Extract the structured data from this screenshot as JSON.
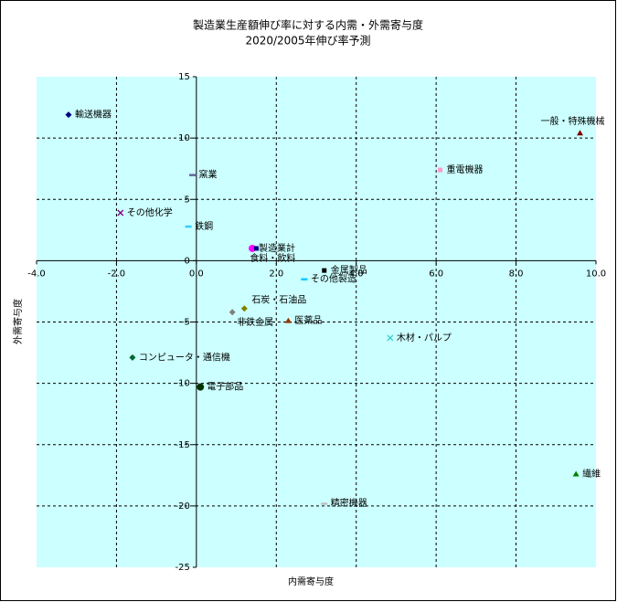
{
  "chart_data": {
    "type": "scatter",
    "title": "製造業生産額伸び率に対する内需・外需寄与度",
    "subtitle": "2020/2005年伸び率予測",
    "x_label": "内需寄与度",
    "y_label": "外需寄与度",
    "xlim": [
      -4,
      10
    ],
    "ylim": [
      -25,
      15
    ],
    "xticks": [
      {
        "value": -4,
        "label": "-4.0"
      },
      {
        "value": -2,
        "label": "-2.0"
      },
      {
        "value": 0,
        "label": "0.0"
      },
      {
        "value": 2,
        "label": "2.0"
      },
      {
        "value": 4,
        "label": "4.0"
      },
      {
        "value": 6,
        "label": "6.0"
      },
      {
        "value": 8,
        "label": "8.0"
      },
      {
        "value": 10,
        "label": "10.0"
      }
    ],
    "yticks": [
      15,
      10,
      5,
      0,
      -5,
      -10,
      -15,
      -20,
      -25
    ],
    "grid": true,
    "background": "#ccffff",
    "points": [
      {
        "name": "輸送機器",
        "color": "#000080",
        "marker": "diamond",
        "x": -3.2,
        "y": 11.9
      },
      {
        "name": "一般・特殊機械",
        "color": "#800000",
        "marker": "triangle",
        "x": 9.6,
        "y": 10.4
      },
      {
        "name": "重電機器",
        "color": "#ff99cc",
        "marker": "square",
        "x": 6.1,
        "y": 7.4
      },
      {
        "name": "窯業",
        "color": "#666699",
        "marker": "dash",
        "x": -0.1,
        "y": 7.0
      },
      {
        "name": "その他化学",
        "color": "#800080",
        "marker": "x",
        "x": -1.9,
        "y": 3.9
      },
      {
        "name": "鉄鋼",
        "color": "#33ccff",
        "marker": "dash",
        "x": -0.2,
        "y": 2.8
      },
      {
        "name": "製造業計",
        "color": "#ff00ff",
        "marker": "circle",
        "x": 1.4,
        "y": 1.0
      },
      {
        "name": "食料・飲料",
        "color": "#000080",
        "marker": "square",
        "x": 1.5,
        "y": 1.0
      },
      {
        "name": "金属製品",
        "color": "#000000",
        "marker": "square",
        "x": 3.2,
        "y": -0.8
      },
      {
        "name": "その他製造",
        "color": "#00ccff",
        "marker": "dash",
        "x": 2.7,
        "y": -1.5
      },
      {
        "name": "石炭・石油品",
        "color": "#808000",
        "marker": "diamond",
        "x": 1.2,
        "y": -3.9
      },
      {
        "name": "非鉄金属",
        "color": "#808080",
        "marker": "diamond",
        "x": 0.9,
        "y": -4.2
      },
      {
        "name": "医薬品",
        "color": "#993300",
        "marker": "triangle",
        "x": 2.3,
        "y": -4.9
      },
      {
        "name": "木材・パルプ",
        "color": "#33cccc",
        "marker": "x",
        "x": 4.85,
        "y": -6.3
      },
      {
        "name": "コンピュータ・通信機",
        "color": "#006633",
        "marker": "diamond",
        "x": -1.6,
        "y": -7.9
      },
      {
        "name": "電子部品",
        "color": "#003300",
        "marker": "circle",
        "x": 0.1,
        "y": -10.3
      },
      {
        "name": "繊維",
        "color": "#008000",
        "marker": "triangle",
        "x": 9.5,
        "y": -17.4
      },
      {
        "name": "精密機器",
        "color": "#c0c0c0",
        "marker": "dash",
        "x": 3.2,
        "y": -19.8
      }
    ]
  }
}
